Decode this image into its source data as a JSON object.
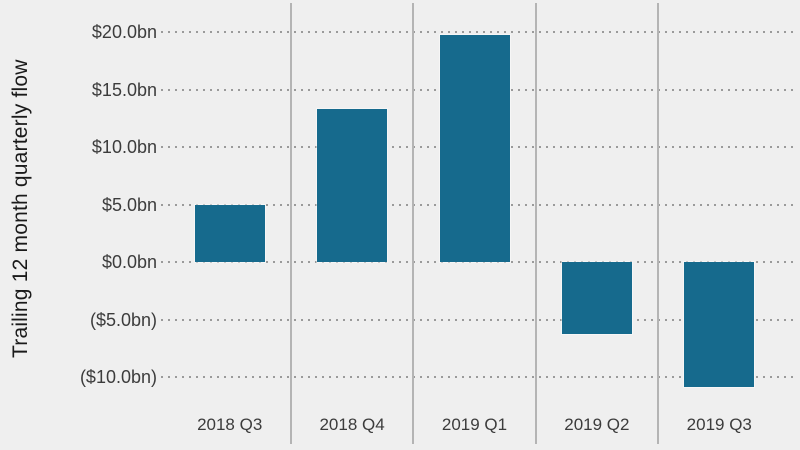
{
  "chart_data": {
    "type": "bar",
    "title": "",
    "xlabel": "",
    "ylabel": "Trailing 12 month quarterly flow",
    "categories": [
      "2018 Q3",
      "2018 Q4",
      "2019 Q1",
      "2019 Q2",
      "2019 Q3"
    ],
    "values": [
      5.0,
      13.3,
      19.7,
      -6.3,
      -10.9
    ],
    "unit": "bn USD",
    "y_ticks": [
      {
        "value": 20,
        "label": "$20.0bn"
      },
      {
        "value": 15,
        "label": "$15.0bn"
      },
      {
        "value": 10,
        "label": "$10.0bn"
      },
      {
        "value": 5,
        "label": "$5.0bn"
      },
      {
        "value": 0,
        "label": "$0.0bn"
      },
      {
        "value": -5,
        "label": "($5.0bn)"
      },
      {
        "value": -10,
        "label": "($10.0bn)"
      }
    ],
    "ylim": [
      -12,
      22
    ],
    "grid": "dotted horizontal gridlines at each y tick; solid vertical separators between categories",
    "legend": "none",
    "colors": {
      "background": "#efefef",
      "bar": "#166a8d",
      "bar_edge": "rgba(255,255,255,0.45)",
      "gridline": "#9a9a9a",
      "separator": "#b4b4b4",
      "tick_text": "#3c3c3c",
      "title_text": "#1a1a1a"
    }
  }
}
